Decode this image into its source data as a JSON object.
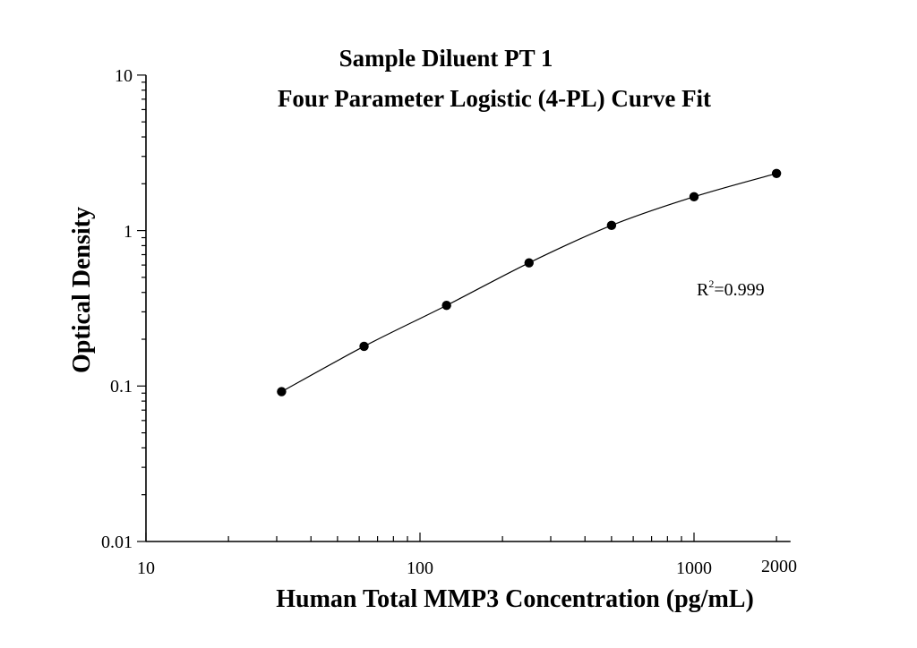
{
  "chart_data": {
    "type": "scatter",
    "title": "Sample Diluent PT 1",
    "subtitle": "Four Parameter Logistic (4-PL) Curve Fit",
    "xlabel": "Human Total MMP3 Concentration (pg/mL)",
    "ylabel": "Optical Density",
    "x_scale": "log",
    "y_scale": "log",
    "xlim": [
      10,
      2250
    ],
    "ylim": [
      0.01,
      10
    ],
    "x_ticks": [
      "10",
      "100",
      "1000",
      "2000"
    ],
    "y_ticks": [
      "0.01",
      "0.1",
      "1",
      "10"
    ],
    "grid": false,
    "annotation": {
      "text_base": "R",
      "text_sup": "2",
      "text_rest": "=0.999"
    },
    "series": [
      {
        "x": [
          31.25,
          62.5,
          125,
          250,
          500,
          1000,
          2000
        ],
        "y": [
          0.092,
          0.18,
          0.33,
          0.62,
          1.08,
          1.65,
          2.33
        ],
        "fit": "4-PL curve",
        "marker_color": "#000000",
        "line_color": "#000000"
      }
    ]
  }
}
